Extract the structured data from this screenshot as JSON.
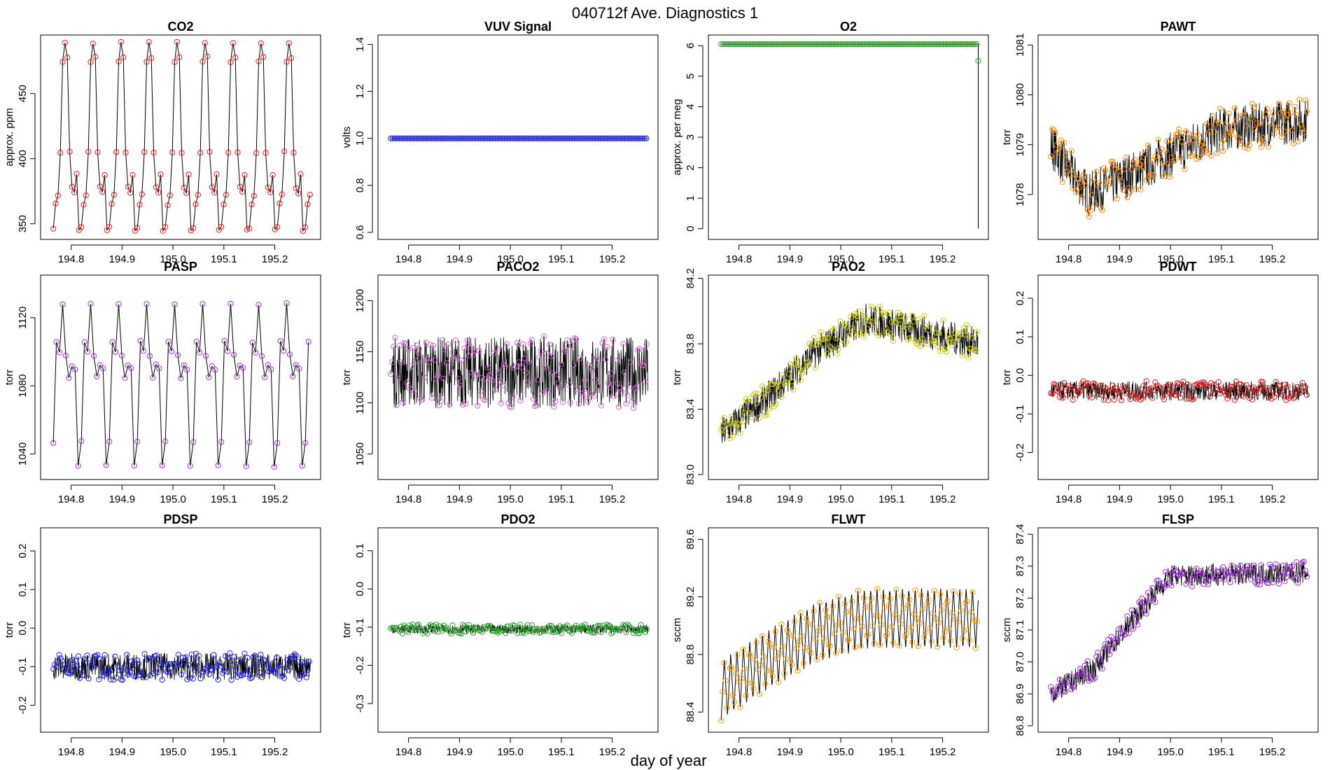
{
  "figure": {
    "title": "040712f   Ave. Diagnostics 1",
    "xlabel": "day of year"
  },
  "chart_data": [
    {
      "type": "line",
      "title": "CO2",
      "ylabel": "approx. ppm",
      "color": "#e41a1c",
      "xlim": [
        194.74,
        195.29
      ],
      "ylim": [
        338,
        495
      ],
      "yticks": [
        350,
        400,
        450
      ],
      "ytick_labels": [
        "350",
        "400",
        "450"
      ],
      "xticks": [
        194.8,
        194.9,
        195.0,
        195.1,
        195.2
      ],
      "xtick_labels": [
        "194.8",
        "194.9",
        "195.0",
        "195.1",
        "195.2"
      ],
      "pattern": "cycle",
      "cycle_values": [
        347,
        365,
        372,
        405,
        474,
        489,
        478,
        405,
        378,
        374,
        388,
        345
      ],
      "cycle_len": 0.055,
      "x_start": 194.765,
      "x_end": 195.27
    },
    {
      "type": "line",
      "title": "VUV Signal",
      "ylabel": "volts",
      "color": "#2222dd",
      "xlim": [
        194.74,
        195.29
      ],
      "ylim": [
        0.57,
        1.44
      ],
      "yticks": [
        0.6,
        0.8,
        1.0,
        1.2,
        1.4
      ],
      "ytick_labels": [
        "0.6",
        "0.8",
        "1.0",
        "1.2",
        "1.4"
      ],
      "xticks": [
        194.8,
        194.9,
        195.0,
        195.1,
        195.2
      ],
      "xtick_labels": [
        "194.8",
        "194.9",
        "195.0",
        "195.1",
        "195.2"
      ],
      "pattern": "flat",
      "level": 1.0,
      "noise": 0,
      "x_start": 194.765,
      "x_end": 195.27
    },
    {
      "type": "line",
      "title": "O2",
      "ylabel": "approx. per meg",
      "color": "#2ca02c",
      "xlim": [
        194.74,
        195.29
      ],
      "ylim": [
        -0.35,
        6.35
      ],
      "yticks": [
        0,
        1,
        2,
        3,
        4,
        5,
        6
      ],
      "ytick_labels": [
        "0",
        "1",
        "2",
        "3",
        "4",
        "5",
        "6"
      ],
      "xticks": [
        194.8,
        194.9,
        195.0,
        195.1,
        195.2
      ],
      "xtick_labels": [
        "194.8",
        "194.9",
        "195.0",
        "195.1",
        "195.2"
      ],
      "pattern": "flat",
      "level": 6.05,
      "noise": 0,
      "x_start": 194.765,
      "x_end": 195.27,
      "end_points": [
        [
          195.27,
          5.5
        ],
        [
          195.27,
          0
        ]
      ]
    },
    {
      "type": "line",
      "title": "PAWT",
      "ylabel": "torr",
      "color": "#ff8c00",
      "xlim": [
        194.74,
        195.29
      ],
      "ylim": [
        1077.1,
        1081.2
      ],
      "yticks": [
        1078,
        1079,
        1080,
        1081
      ],
      "ytick_labels": [
        "1078",
        "1079",
        "1080",
        "1081"
      ],
      "xticks": [
        194.8,
        194.9,
        195.0,
        195.1,
        195.2
      ],
      "xtick_labels": [
        "194.8",
        "194.9",
        "195.0",
        "195.1",
        "195.2"
      ],
      "pattern": "trend",
      "trend_x": [
        194.765,
        194.8,
        194.84,
        194.9,
        195.0,
        195.1,
        195.27
      ],
      "trend_y": [
        1079.0,
        1078.5,
        1078.0,
        1078.3,
        1078.8,
        1079.3,
        1079.5
      ],
      "noise": 0.45,
      "x_start": 194.765,
      "x_end": 195.27
    },
    {
      "type": "line",
      "title": "PASP",
      "ylabel": "torr",
      "color": "#9933cc",
      "xlim": [
        194.74,
        195.29
      ],
      "ylim": [
        1025,
        1145
      ],
      "yticks": [
        1040,
        1080,
        1120
      ],
      "ytick_labels": [
        "1040",
        "1080",
        "1120"
      ],
      "xticks": [
        194.8,
        194.9,
        195.0,
        195.1,
        195.2
      ],
      "xtick_labels": [
        "194.8",
        "194.9",
        "195.0",
        "195.1",
        "195.2"
      ],
      "pattern": "cycle",
      "cycle_values": [
        1047,
        1106,
        1100,
        1128,
        1098,
        1085,
        1092,
        1090,
        1033
      ],
      "cycle_len": 0.055,
      "x_start": 194.765,
      "x_end": 195.27
    },
    {
      "type": "line",
      "title": "PACO2",
      "ylabel": "torr",
      "color": "#cc66cc",
      "xlim": [
        194.74,
        195.29
      ],
      "ylim": [
        1025,
        1225
      ],
      "yticks": [
        1050,
        1100,
        1150,
        1200
      ],
      "ytick_labels": [
        "1050",
        "1100",
        "1150",
        "1200"
      ],
      "xticks": [
        194.8,
        194.9,
        195.0,
        195.1,
        195.2
      ],
      "xtick_labels": [
        "194.8",
        "194.9",
        "195.0",
        "195.1",
        "195.2"
      ],
      "pattern": "flat",
      "level": 1130,
      "noise": 35,
      "x_start": 194.765,
      "x_end": 195.27
    },
    {
      "type": "line",
      "title": "PAO2",
      "ylabel": "torr",
      "color": "#cccc00",
      "xlim": [
        194.74,
        195.29
      ],
      "ylim": [
        82.97,
        84.22
      ],
      "yticks": [
        83.0,
        83.4,
        83.8,
        84.2
      ],
      "ytick_labels": [
        "83.0",
        "83.4",
        "83.8",
        "84.2"
      ],
      "xticks": [
        194.8,
        194.9,
        195.0,
        195.1,
        195.2
      ],
      "xtick_labels": [
        "194.8",
        "194.9",
        "195.0",
        "195.1",
        "195.2"
      ],
      "pattern": "trend",
      "trend_x": [
        194.765,
        194.85,
        194.95,
        195.05,
        195.27
      ],
      "trend_y": [
        83.25,
        83.45,
        83.75,
        83.95,
        83.8
      ],
      "noise": 0.1,
      "x_start": 194.765,
      "x_end": 195.27
    },
    {
      "type": "line",
      "title": "PDWT",
      "ylabel": "torr",
      "color": "#cc2222",
      "xlim": [
        194.74,
        195.29
      ],
      "ylim": [
        -0.27,
        0.26
      ],
      "yticks": [
        -0.2,
        -0.1,
        0.0,
        0.1,
        0.2
      ],
      "ytick_labels": [
        "-0.2",
        "-0.1",
        "0.0",
        "0.1",
        "0.2"
      ],
      "xticks": [
        194.8,
        194.9,
        195.0,
        195.1,
        195.2
      ],
      "xtick_labels": [
        "194.8",
        "194.9",
        "195.0",
        "195.1",
        "195.2"
      ],
      "pattern": "flat",
      "level": -0.04,
      "noise": 0.025,
      "x_start": 194.765,
      "x_end": 195.27
    },
    {
      "type": "line",
      "title": "PDSP",
      "ylabel": "torr",
      "color": "#2222dd",
      "xlim": [
        194.74,
        195.29
      ],
      "ylim": [
        -0.27,
        0.26
      ],
      "yticks": [
        -0.2,
        -0.1,
        0.0,
        0.1,
        0.2
      ],
      "ytick_labels": [
        "-0.2",
        "-0.1",
        "0.0",
        "0.1",
        "0.2"
      ],
      "xticks": [
        194.8,
        194.9,
        195.0,
        195.1,
        195.2
      ],
      "xtick_labels": [
        "194.8",
        "194.9",
        "195.0",
        "195.1",
        "195.2"
      ],
      "pattern": "flat",
      "level": -0.1,
      "noise": 0.035,
      "x_start": 194.765,
      "x_end": 195.27
    },
    {
      "type": "line",
      "title": "PDO2",
      "ylabel": "torr",
      "color": "#2ca02c",
      "xlim": [
        194.74,
        195.29
      ],
      "ylim": [
        -0.375,
        0.16
      ],
      "yticks": [
        -0.3,
        -0.2,
        -0.1,
        0.0,
        0.1
      ],
      "ytick_labels": [
        "-0.3",
        "-0.2",
        "-0.1",
        "0.0",
        "0.1"
      ],
      "xticks": [
        194.8,
        194.9,
        195.0,
        195.1,
        195.2
      ],
      "xtick_labels": [
        "194.8",
        "194.9",
        "195.0",
        "195.1",
        "195.2"
      ],
      "pattern": "flat",
      "level": -0.105,
      "noise": 0.012,
      "x_start": 194.765,
      "x_end": 195.27
    },
    {
      "type": "line",
      "title": "FLWT",
      "ylabel": "sccm",
      "color": "#ff9900",
      "xlim": [
        194.74,
        195.29
      ],
      "ylim": [
        88.26,
        89.68
      ],
      "yticks": [
        88.4,
        88.8,
        89.2,
        89.6
      ],
      "ytick_labels": [
        "88.4",
        "88.8",
        "89.2",
        "89.6"
      ],
      "xticks": [
        194.8,
        194.9,
        195.0,
        195.1,
        195.2
      ],
      "xtick_labels": [
        "194.8",
        "194.9",
        "195.0",
        "195.1",
        "195.2"
      ],
      "pattern": "sawtooth",
      "trend_x": [
        194.765,
        194.85,
        194.95,
        195.05,
        195.27
      ],
      "trend_y": [
        88.55,
        88.75,
        88.95,
        89.05,
        89.05
      ],
      "amplitude": 0.42,
      "period": 0.0125,
      "x_start": 194.765,
      "x_end": 195.27
    },
    {
      "type": "line",
      "title": "FLSP",
      "ylabel": "sccm",
      "color": "#9933cc",
      "xlim": [
        194.74,
        195.29
      ],
      "ylim": [
        86.78,
        87.42
      ],
      "yticks": [
        86.8,
        86.9,
        87.0,
        87.1,
        87.2,
        87.3,
        87.4
      ],
      "ytick_labels": [
        "86.8",
        "86.9",
        "87.0",
        "87.1",
        "87.2",
        "87.3",
        "87.4"
      ],
      "xticks": [
        194.8,
        194.9,
        195.0,
        195.1,
        195.2
      ],
      "xtick_labels": [
        "194.8",
        "194.9",
        "195.0",
        "195.1",
        "195.2"
      ],
      "pattern": "trend",
      "trend_x": [
        194.765,
        194.85,
        194.9,
        194.95,
        195.0,
        195.27
      ],
      "trend_y": [
        86.9,
        86.98,
        87.08,
        87.18,
        87.27,
        87.28
      ],
      "noise": 0.035,
      "x_start": 194.765,
      "x_end": 195.27
    }
  ]
}
